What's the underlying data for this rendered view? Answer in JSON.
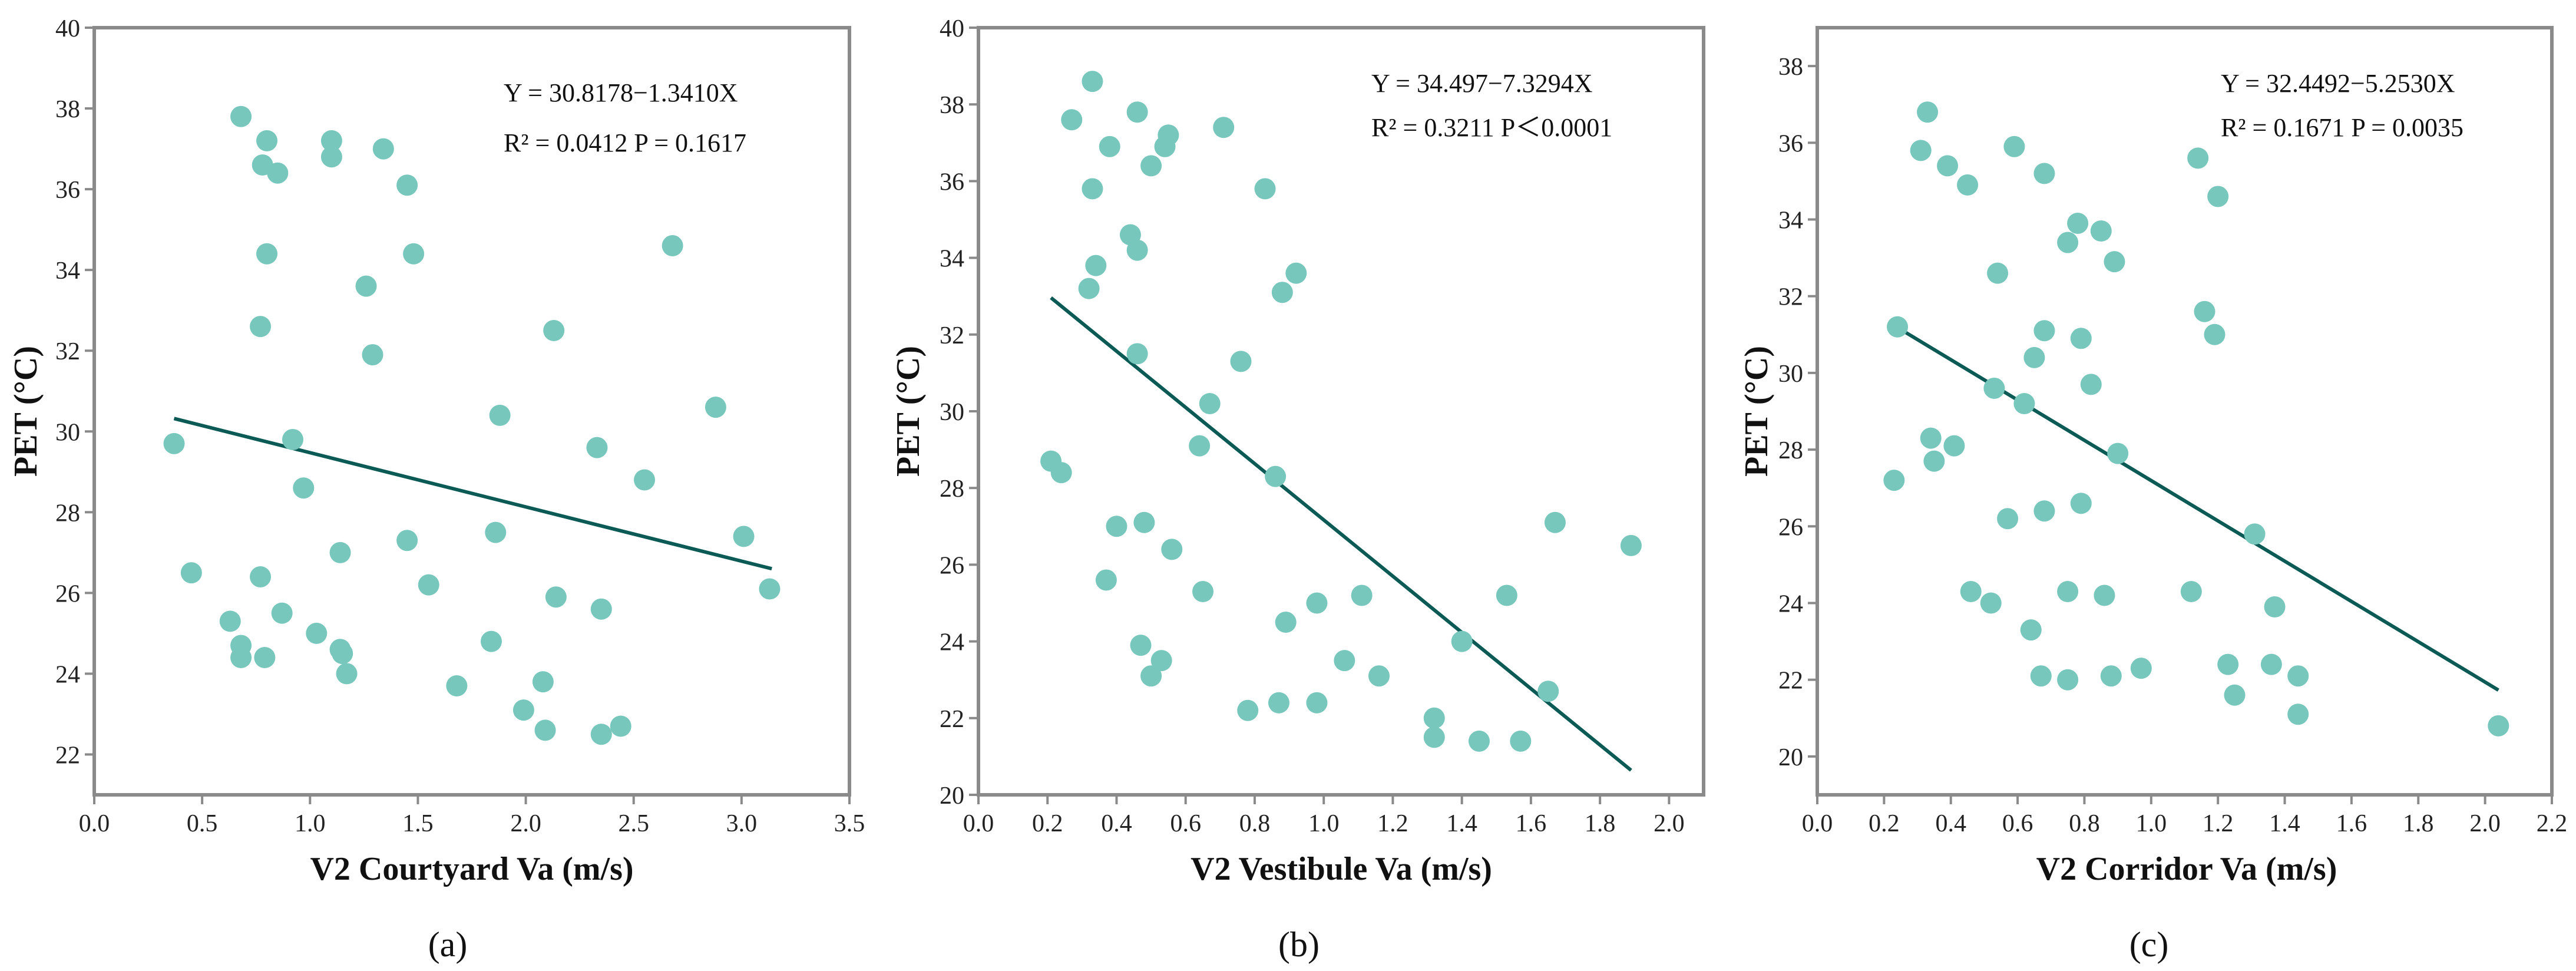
{
  "chart_data": [
    {
      "type": "scatter",
      "panel_label": "(a)",
      "xlabel": "V2 Courtyard Va (m/s)",
      "ylabel": "PET (°C)",
      "xlim": [
        0.0,
        3.5
      ],
      "ylim": [
        21,
        40
      ],
      "xticks": [
        "0.0",
        "0.5",
        "1.0",
        "1.5",
        "2.0",
        "2.5",
        "3.0",
        "3.5"
      ],
      "yticks": [
        "22",
        "24",
        "26",
        "28",
        "30",
        "32",
        "34",
        "36",
        "38",
        "40"
      ],
      "equation": "Y = 30.8178−1.3410X",
      "r2_text": "R² = 0.0412  P = 0.1617",
      "fit": {
        "x0": 0.37,
        "y0": 30.32,
        "x1": 3.14,
        "y1": 26.6
      },
      "points": [
        [
          0.37,
          29.7
        ],
        [
          0.45,
          26.5
        ],
        [
          0.63,
          25.3
        ],
        [
          0.68,
          37.8
        ],
        [
          0.68,
          24.7
        ],
        [
          0.68,
          24.4
        ],
        [
          0.77,
          26.4
        ],
        [
          0.77,
          32.6
        ],
        [
          0.78,
          36.6
        ],
        [
          0.79,
          24.4
        ],
        [
          0.8,
          37.2
        ],
        [
          0.8,
          34.4
        ],
        [
          0.85,
          36.4
        ],
        [
          0.87,
          25.5
        ],
        [
          0.92,
          29.8
        ],
        [
          0.97,
          28.6
        ],
        [
          1.03,
          25.0
        ],
        [
          1.1,
          37.2
        ],
        [
          1.1,
          36.8
        ],
        [
          1.14,
          27.0
        ],
        [
          1.14,
          24.6
        ],
        [
          1.15,
          24.5
        ],
        [
          1.17,
          24.0
        ],
        [
          1.26,
          33.6
        ],
        [
          1.29,
          31.9
        ],
        [
          1.34,
          37.0
        ],
        [
          1.45,
          36.1
        ],
        [
          1.45,
          27.3
        ],
        [
          1.48,
          34.4
        ],
        [
          1.55,
          26.2
        ],
        [
          1.68,
          23.7
        ],
        [
          1.84,
          24.8
        ],
        [
          1.86,
          27.5
        ],
        [
          1.88,
          30.4
        ],
        [
          1.99,
          23.1
        ],
        [
          2.08,
          23.8
        ],
        [
          2.09,
          22.6
        ],
        [
          2.13,
          32.5
        ],
        [
          2.14,
          25.9
        ],
        [
          2.33,
          29.6
        ],
        [
          2.35,
          25.6
        ],
        [
          2.35,
          22.5
        ],
        [
          2.44,
          22.7
        ],
        [
          2.55,
          28.8
        ],
        [
          2.68,
          34.6
        ],
        [
          2.88,
          30.6
        ],
        [
          3.01,
          27.4
        ],
        [
          3.13,
          26.1
        ]
      ]
    },
    {
      "type": "scatter",
      "panel_label": "(b)",
      "xlabel": "V2 Vestibule Va (m/s)",
      "ylabel": "PET (°C)",
      "xlim": [
        0.0,
        2.1
      ],
      "ylim": [
        20,
        40
      ],
      "xticks": [
        "0.0",
        "0.2",
        "0.4",
        "0.6",
        "0.8",
        "1.0",
        "1.2",
        "1.4",
        "1.6",
        "1.8",
        "2.0"
      ],
      "yticks": [
        "20",
        "22",
        "24",
        "26",
        "28",
        "30",
        "32",
        "34",
        "36",
        "38",
        "40"
      ],
      "equation": "Y = 34.497−7.3294X",
      "r2_text": "R² = 0.3211  P＜0.0001",
      "fit": {
        "x0": 0.21,
        "y0": 32.96,
        "x1": 1.89,
        "y1": 20.64
      },
      "points": [
        [
          0.21,
          28.7
        ],
        [
          0.24,
          28.4
        ],
        [
          0.27,
          37.6
        ],
        [
          0.32,
          33.2
        ],
        [
          0.33,
          38.6
        ],
        [
          0.33,
          35.8
        ],
        [
          0.34,
          33.8
        ],
        [
          0.37,
          25.6
        ],
        [
          0.38,
          36.9
        ],
        [
          0.4,
          27.0
        ],
        [
          0.44,
          34.6
        ],
        [
          0.46,
          37.8
        ],
        [
          0.46,
          34.2
        ],
        [
          0.46,
          31.5
        ],
        [
          0.47,
          23.9
        ],
        [
          0.48,
          27.1
        ],
        [
          0.5,
          36.4
        ],
        [
          0.5,
          23.1
        ],
        [
          0.53,
          23.5
        ],
        [
          0.54,
          36.9
        ],
        [
          0.55,
          37.2
        ],
        [
          0.56,
          26.4
        ],
        [
          0.64,
          29.1
        ],
        [
          0.65,
          25.3
        ],
        [
          0.67,
          30.2
        ],
        [
          0.71,
          37.4
        ],
        [
          0.76,
          31.3
        ],
        [
          0.78,
          22.2
        ],
        [
          0.83,
          35.8
        ],
        [
          0.86,
          28.3
        ],
        [
          0.87,
          22.4
        ],
        [
          0.88,
          33.1
        ],
        [
          0.89,
          24.5
        ],
        [
          0.92,
          33.6
        ],
        [
          0.98,
          25.0
        ],
        [
          0.98,
          22.4
        ],
        [
          1.06,
          23.5
        ],
        [
          1.11,
          25.2
        ],
        [
          1.16,
          23.1
        ],
        [
          1.32,
          22.0
        ],
        [
          1.32,
          21.5
        ],
        [
          1.4,
          24.0
        ],
        [
          1.45,
          21.4
        ],
        [
          1.53,
          25.2
        ],
        [
          1.57,
          21.4
        ],
        [
          1.65,
          22.7
        ],
        [
          1.67,
          27.1
        ],
        [
          1.89,
          26.5
        ]
      ]
    },
    {
      "type": "scatter",
      "panel_label": "(c)",
      "xlabel": "V2 Corridor Va (m/s)",
      "ylabel": "PET (°C)",
      "xlim": [
        0.0,
        2.2
      ],
      "ylim": [
        19,
        39
      ],
      "xticks": [
        "0.0",
        "0.2",
        "0.4",
        "0.6",
        "0.8",
        "1.0",
        "1.2",
        "1.4",
        "1.6",
        "1.8",
        "2.0",
        "2.2"
      ],
      "yticks": [
        "20",
        "22",
        "24",
        "26",
        "28",
        "30",
        "32",
        "34",
        "36",
        "38"
      ],
      "equation": "Y = 32.4492−5.2530X",
      "r2_text": "R² = 0.1671  P = 0.0035",
      "fit": {
        "x0": 0.22,
        "y0": 31.29,
        "x1": 2.04,
        "y1": 21.73
      },
      "points": [
        [
          0.23,
          27.2
        ],
        [
          0.24,
          31.2
        ],
        [
          0.31,
          35.8
        ],
        [
          0.33,
          36.8
        ],
        [
          0.34,
          28.3
        ],
        [
          0.35,
          27.7
        ],
        [
          0.39,
          35.4
        ],
        [
          0.41,
          28.1
        ],
        [
          0.45,
          34.9
        ],
        [
          0.46,
          24.3
        ],
        [
          0.52,
          24.0
        ],
        [
          0.53,
          29.6
        ],
        [
          0.54,
          32.6
        ],
        [
          0.57,
          26.2
        ],
        [
          0.59,
          35.9
        ],
        [
          0.62,
          29.2
        ],
        [
          0.64,
          23.3
        ],
        [
          0.65,
          30.4
        ],
        [
          0.67,
          22.1
        ],
        [
          0.68,
          31.1
        ],
        [
          0.68,
          26.4
        ],
        [
          0.68,
          35.2
        ],
        [
          0.75,
          33.4
        ],
        [
          0.75,
          24.3
        ],
        [
          0.75,
          22.0
        ],
        [
          0.78,
          33.9
        ],
        [
          0.79,
          30.9
        ],
        [
          0.79,
          26.6
        ],
        [
          0.82,
          29.7
        ],
        [
          0.85,
          33.7
        ],
        [
          0.86,
          24.2
        ],
        [
          0.88,
          22.1
        ],
        [
          0.89,
          32.9
        ],
        [
          0.9,
          27.9
        ],
        [
          0.97,
          22.3
        ],
        [
          1.12,
          24.3
        ],
        [
          1.14,
          35.6
        ],
        [
          1.16,
          31.6
        ],
        [
          1.19,
          31.0
        ],
        [
          1.2,
          34.6
        ],
        [
          1.23,
          22.4
        ],
        [
          1.25,
          21.6
        ],
        [
          1.31,
          25.8
        ],
        [
          1.36,
          22.4
        ],
        [
          1.37,
          23.9
        ],
        [
          1.44,
          22.1
        ],
        [
          1.44,
          21.1
        ],
        [
          2.04,
          20.8
        ]
      ]
    }
  ]
}
